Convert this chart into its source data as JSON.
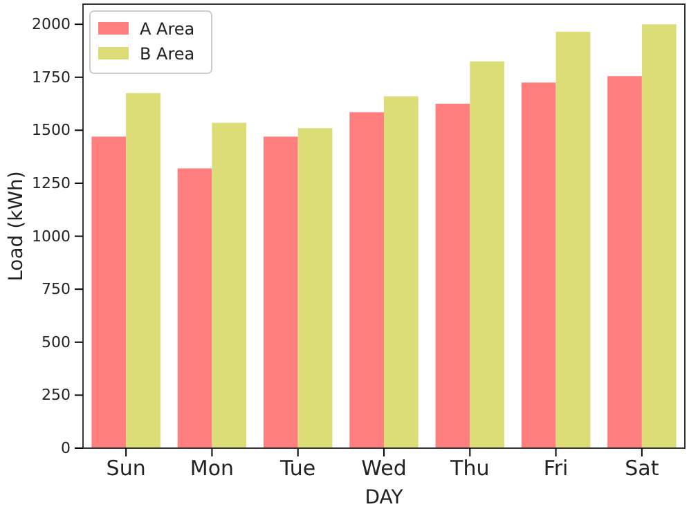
{
  "chart_data": {
    "type": "bar",
    "xlabel": "DAY",
    "ylabel": "Load (kWh)",
    "categories": [
      "Sun",
      "Mon",
      "Tue",
      "Wed",
      "Thu",
      "Fri",
      "Sat"
    ],
    "series": [
      {
        "name": "A Area",
        "color": "#ff7f7f",
        "values": [
          1470,
          1320,
          1470,
          1585,
          1625,
          1725,
          1755
        ]
      },
      {
        "name": "B Area",
        "color": "#dddd77",
        "values": [
          1675,
          1535,
          1510,
          1660,
          1825,
          1965,
          2000
        ]
      }
    ],
    "ylim": [
      0,
      2095
    ],
    "yticks": [
      0,
      250,
      500,
      750,
      1000,
      1250,
      1500,
      1750,
      2000
    ],
    "legend": "top left",
    "grid": false
  }
}
